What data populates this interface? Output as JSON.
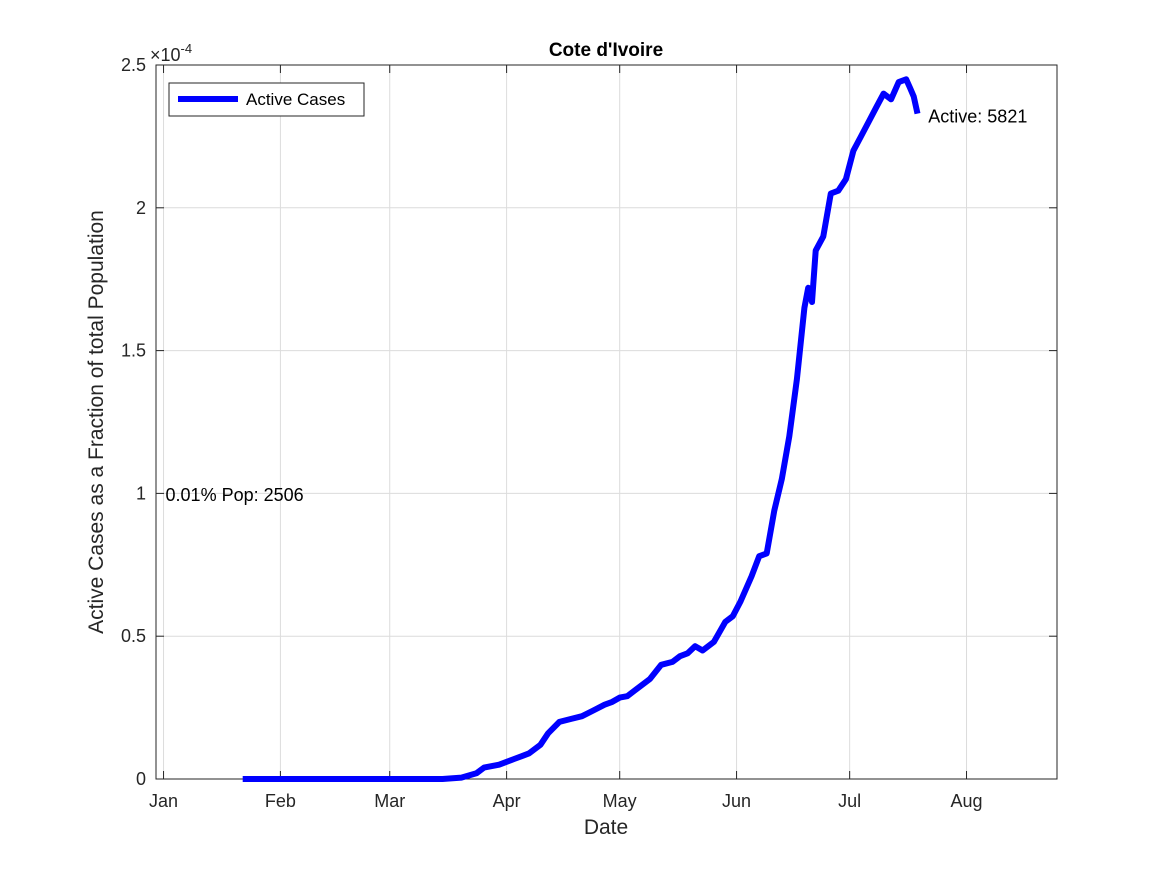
{
  "chart_data": {
    "type": "line",
    "title": "Cote d'Ivoire",
    "xlabel": "Date",
    "ylabel": "Active Cases as a Fraction of total Population",
    "y_exponent_label": "×10",
    "y_exponent_power": "-4",
    "x_ticks": [
      {
        "date": "2020-01-01",
        "label": "Jan"
      },
      {
        "date": "2020-02-01",
        "label": "Feb"
      },
      {
        "date": "2020-03-01",
        "label": "Mar"
      },
      {
        "date": "2020-04-01",
        "label": "Apr"
      },
      {
        "date": "2020-05-01",
        "label": "May"
      },
      {
        "date": "2020-06-01",
        "label": "Jun"
      },
      {
        "date": "2020-07-01",
        "label": "Jul"
      },
      {
        "date": "2020-08-01",
        "label": "Aug"
      }
    ],
    "y_ticks": [
      {
        "value": 0,
        "label": "0"
      },
      {
        "value": 0.5,
        "label": "0.5"
      },
      {
        "value": 1,
        "label": "1"
      },
      {
        "value": 1.5,
        "label": "1.5"
      },
      {
        "value": 2,
        "label": "2"
      },
      {
        "value": 2.5,
        "label": "2.5"
      }
    ],
    "xlim": [
      "2019-12-30",
      "2020-08-25"
    ],
    "ylim": [
      0,
      2.5
    ],
    "grid": true,
    "legend_position": "top-left",
    "series": [
      {
        "name": "Active Cases",
        "color": "#0000ff",
        "x": [
          "2020-01-22",
          "2020-02-10",
          "2020-03-01",
          "2020-03-15",
          "2020-03-20",
          "2020-03-24",
          "2020-03-26",
          "2020-03-30",
          "2020-04-03",
          "2020-04-05",
          "2020-04-07",
          "2020-04-10",
          "2020-04-12",
          "2020-04-15",
          "2020-04-18",
          "2020-04-21",
          "2020-04-24",
          "2020-04-27",
          "2020-04-29",
          "2020-05-01",
          "2020-05-03",
          "2020-05-06",
          "2020-05-09",
          "2020-05-12",
          "2020-05-15",
          "2020-05-17",
          "2020-05-19",
          "2020-05-21",
          "2020-05-23",
          "2020-05-26",
          "2020-05-29",
          "2020-05-31",
          "2020-06-02",
          "2020-06-05",
          "2020-06-07",
          "2020-06-09",
          "2020-06-11",
          "2020-06-13",
          "2020-06-15",
          "2020-06-17",
          "2020-06-19",
          "2020-06-20",
          "2020-06-21",
          "2020-06-22",
          "2020-06-24",
          "2020-06-26",
          "2020-06-28",
          "2020-06-30",
          "2020-07-02",
          "2020-07-04",
          "2020-07-06",
          "2020-07-08",
          "2020-07-10",
          "2020-07-12",
          "2020-07-14",
          "2020-07-16",
          "2020-07-17",
          "2020-07-18",
          "2020-07-19"
        ],
        "y": [
          0,
          0,
          0,
          0,
          0.005,
          0.02,
          0.04,
          0.05,
          0.07,
          0.08,
          0.09,
          0.12,
          0.16,
          0.2,
          0.21,
          0.22,
          0.24,
          0.26,
          0.27,
          0.285,
          0.29,
          0.32,
          0.35,
          0.4,
          0.41,
          0.43,
          0.44,
          0.465,
          0.45,
          0.48,
          0.55,
          0.57,
          0.62,
          0.71,
          0.78,
          0.79,
          0.94,
          1.05,
          1.2,
          1.4,
          1.65,
          1.72,
          1.67,
          1.85,
          1.9,
          2.05,
          2.06,
          2.1,
          2.2,
          2.25,
          2.3,
          2.35,
          2.4,
          2.38,
          2.44,
          2.45,
          2.42,
          2.39,
          2.33
        ]
      }
    ],
    "annotations": [
      {
        "text": "Active: 5821",
        "date": "2020-07-20",
        "value": 2.32
      },
      {
        "text": "0.01% Pop: 2506",
        "date": "2020-01-01",
        "value": 0.995
      }
    ]
  }
}
